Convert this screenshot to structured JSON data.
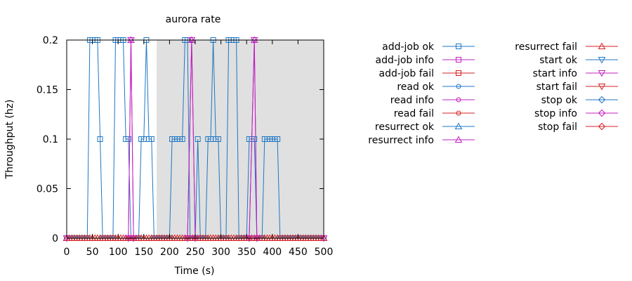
{
  "chart_data": {
    "type": "line",
    "title": "aurora rate",
    "xlabel": "Time (s)",
    "ylabel": "Throughput (hz)",
    "xlim": [
      0,
      500
    ],
    "ylim": [
      0,
      0.2
    ],
    "xticks": [
      "0",
      "50",
      "100",
      "150",
      "200",
      "250",
      "300",
      "350",
      "400",
      "450",
      "500"
    ],
    "yticks": [
      "0",
      "0.05",
      "0.1",
      "0.15",
      "0.2"
    ],
    "grid": false,
    "legend_position": "right",
    "shaded_regions": [
      [
        175,
        500
      ]
    ],
    "shaded_color": "#e0e0e0",
    "series": [
      {
        "name": "add-job ok",
        "color": "#1f77c4",
        "marker": "square",
        "points": [
          [
            0,
            0
          ],
          [
            5,
            0
          ],
          [
            10,
            0
          ],
          [
            15,
            0
          ],
          [
            20,
            0
          ],
          [
            25,
            0
          ],
          [
            30,
            0
          ],
          [
            35,
            0
          ],
          [
            40,
            0
          ],
          [
            45,
            0.2
          ],
          [
            50,
            0.2
          ],
          [
            55,
            0.2
          ],
          [
            60,
            0.2
          ],
          [
            65,
            0.1
          ],
          [
            70,
            0
          ],
          [
            75,
            0
          ],
          [
            80,
            0
          ],
          [
            85,
            0
          ],
          [
            90,
            0
          ],
          [
            95,
            0.2
          ],
          [
            100,
            0.2
          ],
          [
            105,
            0.2
          ],
          [
            110,
            0.2
          ],
          [
            115,
            0.1
          ],
          [
            120,
            0.1
          ],
          [
            125,
            0
          ],
          [
            130,
            0
          ],
          [
            135,
            0
          ],
          [
            140,
            0
          ],
          [
            145,
            0.1
          ],
          [
            150,
            0.1
          ],
          [
            155,
            0.2
          ],
          [
            160,
            0.1
          ],
          [
            165,
            0.1
          ],
          [
            170,
            0
          ],
          [
            175,
            0
          ],
          [
            180,
            0
          ],
          [
            185,
            0
          ],
          [
            190,
            0
          ],
          [
            195,
            0
          ],
          [
            200,
            0
          ],
          [
            205,
            0.1
          ],
          [
            210,
            0.1
          ],
          [
            215,
            0.1
          ],
          [
            220,
            0.1
          ],
          [
            225,
            0.1
          ],
          [
            230,
            0.2
          ],
          [
            235,
            0.2
          ],
          [
            240,
            0
          ],
          [
            245,
            0
          ],
          [
            250,
            0
          ],
          [
            255,
            0.1
          ],
          [
            260,
            0
          ],
          [
            265,
            0
          ],
          [
            270,
            0
          ],
          [
            275,
            0.1
          ],
          [
            280,
            0.1
          ],
          [
            285,
            0.2
          ],
          [
            290,
            0.1
          ],
          [
            295,
            0.1
          ],
          [
            300,
            0
          ],
          [
            305,
            0
          ],
          [
            310,
            0
          ],
          [
            315,
            0.2
          ],
          [
            320,
            0.2
          ],
          [
            325,
            0.2
          ],
          [
            330,
            0.2
          ],
          [
            335,
            0
          ],
          [
            340,
            0
          ],
          [
            345,
            0
          ],
          [
            350,
            0
          ],
          [
            355,
            0.1
          ],
          [
            360,
            0.1
          ],
          [
            365,
            0.1
          ],
          [
            370,
            0
          ],
          [
            375,
            0
          ],
          [
            380,
            0
          ],
          [
            385,
            0.1
          ],
          [
            390,
            0.1
          ],
          [
            395,
            0.1
          ],
          [
            400,
            0.1
          ],
          [
            405,
            0.1
          ],
          [
            410,
            0.1
          ],
          [
            415,
            0
          ],
          [
            420,
            0
          ],
          [
            425,
            0
          ],
          [
            430,
            0
          ],
          [
            435,
            0
          ],
          [
            440,
            0
          ],
          [
            445,
            0
          ],
          [
            450,
            0
          ],
          [
            455,
            0
          ],
          [
            460,
            0
          ],
          [
            465,
            0
          ],
          [
            470,
            0
          ],
          [
            475,
            0
          ],
          [
            480,
            0
          ],
          [
            485,
            0
          ],
          [
            490,
            0
          ],
          [
            495,
            0
          ],
          [
            500,
            0
          ]
        ]
      },
      {
        "name": "add-job info",
        "color": "#c020c0",
        "marker": "square",
        "points": []
      },
      {
        "name": "add-job fail",
        "color": "#d62020",
        "marker": "square",
        "points": []
      },
      {
        "name": "read ok",
        "color": "#1f77c4",
        "marker": "circle",
        "points": []
      },
      {
        "name": "read info",
        "color": "#c020c0",
        "marker": "circle",
        "points": []
      },
      {
        "name": "read fail",
        "color": "#d62020",
        "marker": "circle",
        "points": []
      },
      {
        "name": "resurrect ok",
        "color": "#1f77c4",
        "marker": "triangle-up",
        "points": []
      },
      {
        "name": "resurrect info",
        "color": "#c020c0",
        "marker": "triangle-up",
        "points": [
          [
            0,
            0
          ],
          [
            120,
            0
          ],
          [
            125,
            0.2
          ],
          [
            130,
            0
          ],
          [
            235,
            0
          ],
          [
            243,
            0.2
          ],
          [
            250,
            0
          ],
          [
            355,
            0
          ],
          [
            365,
            0.2
          ],
          [
            370,
            0
          ],
          [
            500,
            0
          ]
        ]
      },
      {
        "name": "resurrect fail",
        "color": "#d62020",
        "marker": "triangle-up",
        "points": [
          [
            0,
            0
          ],
          [
            5,
            0
          ],
          [
            10,
            0
          ],
          [
            15,
            0
          ],
          [
            20,
            0
          ],
          [
            25,
            0
          ],
          [
            30,
            0
          ],
          [
            35,
            0
          ],
          [
            40,
            0
          ],
          [
            45,
            0
          ],
          [
            50,
            0
          ],
          [
            55,
            0
          ],
          [
            60,
            0
          ],
          [
            65,
            0
          ],
          [
            70,
            0
          ],
          [
            75,
            0
          ],
          [
            80,
            0
          ],
          [
            85,
            0
          ],
          [
            90,
            0
          ],
          [
            95,
            0
          ],
          [
            100,
            0
          ],
          [
            105,
            0
          ],
          [
            110,
            0
          ],
          [
            115,
            0
          ],
          [
            120,
            0
          ],
          [
            125,
            0
          ],
          [
            130,
            0
          ],
          [
            135,
            0
          ],
          [
            140,
            0
          ],
          [
            145,
            0
          ],
          [
            150,
            0
          ],
          [
            155,
            0
          ],
          [
            160,
            0
          ],
          [
            165,
            0
          ],
          [
            170,
            0
          ],
          [
            175,
            0
          ],
          [
            180,
            0
          ],
          [
            185,
            0
          ],
          [
            190,
            0
          ],
          [
            195,
            0
          ],
          [
            200,
            0
          ],
          [
            205,
            0
          ],
          [
            210,
            0
          ],
          [
            215,
            0
          ],
          [
            220,
            0
          ],
          [
            225,
            0
          ],
          [
            230,
            0
          ],
          [
            235,
            0
          ],
          [
            240,
            0
          ],
          [
            245,
            0
          ],
          [
            250,
            0
          ],
          [
            255,
            0
          ],
          [
            260,
            0
          ],
          [
            265,
            0
          ],
          [
            270,
            0
          ],
          [
            275,
            0
          ],
          [
            280,
            0
          ],
          [
            285,
            0
          ],
          [
            290,
            0
          ],
          [
            295,
            0
          ],
          [
            300,
            0
          ],
          [
            305,
            0
          ],
          [
            310,
            0
          ],
          [
            315,
            0
          ],
          [
            320,
            0
          ],
          [
            325,
            0
          ],
          [
            330,
            0
          ],
          [
            335,
            0
          ],
          [
            340,
            0
          ],
          [
            345,
            0
          ],
          [
            350,
            0
          ],
          [
            355,
            0
          ],
          [
            360,
            0
          ],
          [
            365,
            0
          ],
          [
            370,
            0
          ],
          [
            375,
            0
          ],
          [
            380,
            0
          ],
          [
            385,
            0
          ],
          [
            390,
            0
          ],
          [
            395,
            0
          ],
          [
            400,
            0
          ],
          [
            405,
            0
          ],
          [
            410,
            0
          ],
          [
            415,
            0
          ],
          [
            420,
            0
          ],
          [
            425,
            0
          ],
          [
            430,
            0
          ],
          [
            435,
            0
          ],
          [
            440,
            0
          ],
          [
            445,
            0
          ],
          [
            450,
            0
          ],
          [
            455,
            0
          ],
          [
            460,
            0
          ],
          [
            465,
            0
          ],
          [
            470,
            0
          ],
          [
            475,
            0
          ],
          [
            480,
            0
          ],
          [
            485,
            0
          ],
          [
            490,
            0
          ],
          [
            495,
            0
          ],
          [
            500,
            0
          ]
        ]
      },
      {
        "name": "start ok",
        "color": "#1f77c4",
        "marker": "triangle-down",
        "points": []
      },
      {
        "name": "start info",
        "color": "#c020c0",
        "marker": "triangle-down",
        "points": [
          [
            0,
            0
          ],
          [
            120,
            0
          ],
          [
            125,
            0.2
          ],
          [
            130,
            0
          ],
          [
            235,
            0
          ],
          [
            243,
            0.2
          ],
          [
            250,
            0
          ],
          [
            355,
            0
          ],
          [
            365,
            0.2
          ],
          [
            370,
            0
          ],
          [
            500,
            0
          ]
        ]
      },
      {
        "name": "start fail",
        "color": "#d62020",
        "marker": "triangle-down",
        "points": []
      },
      {
        "name": "stop ok",
        "color": "#1f77c4",
        "marker": "diamond",
        "points": []
      },
      {
        "name": "stop info",
        "color": "#c020c0",
        "marker": "diamond",
        "points": []
      },
      {
        "name": "stop fail",
        "color": "#d62020",
        "marker": "diamond",
        "points": []
      }
    ]
  }
}
